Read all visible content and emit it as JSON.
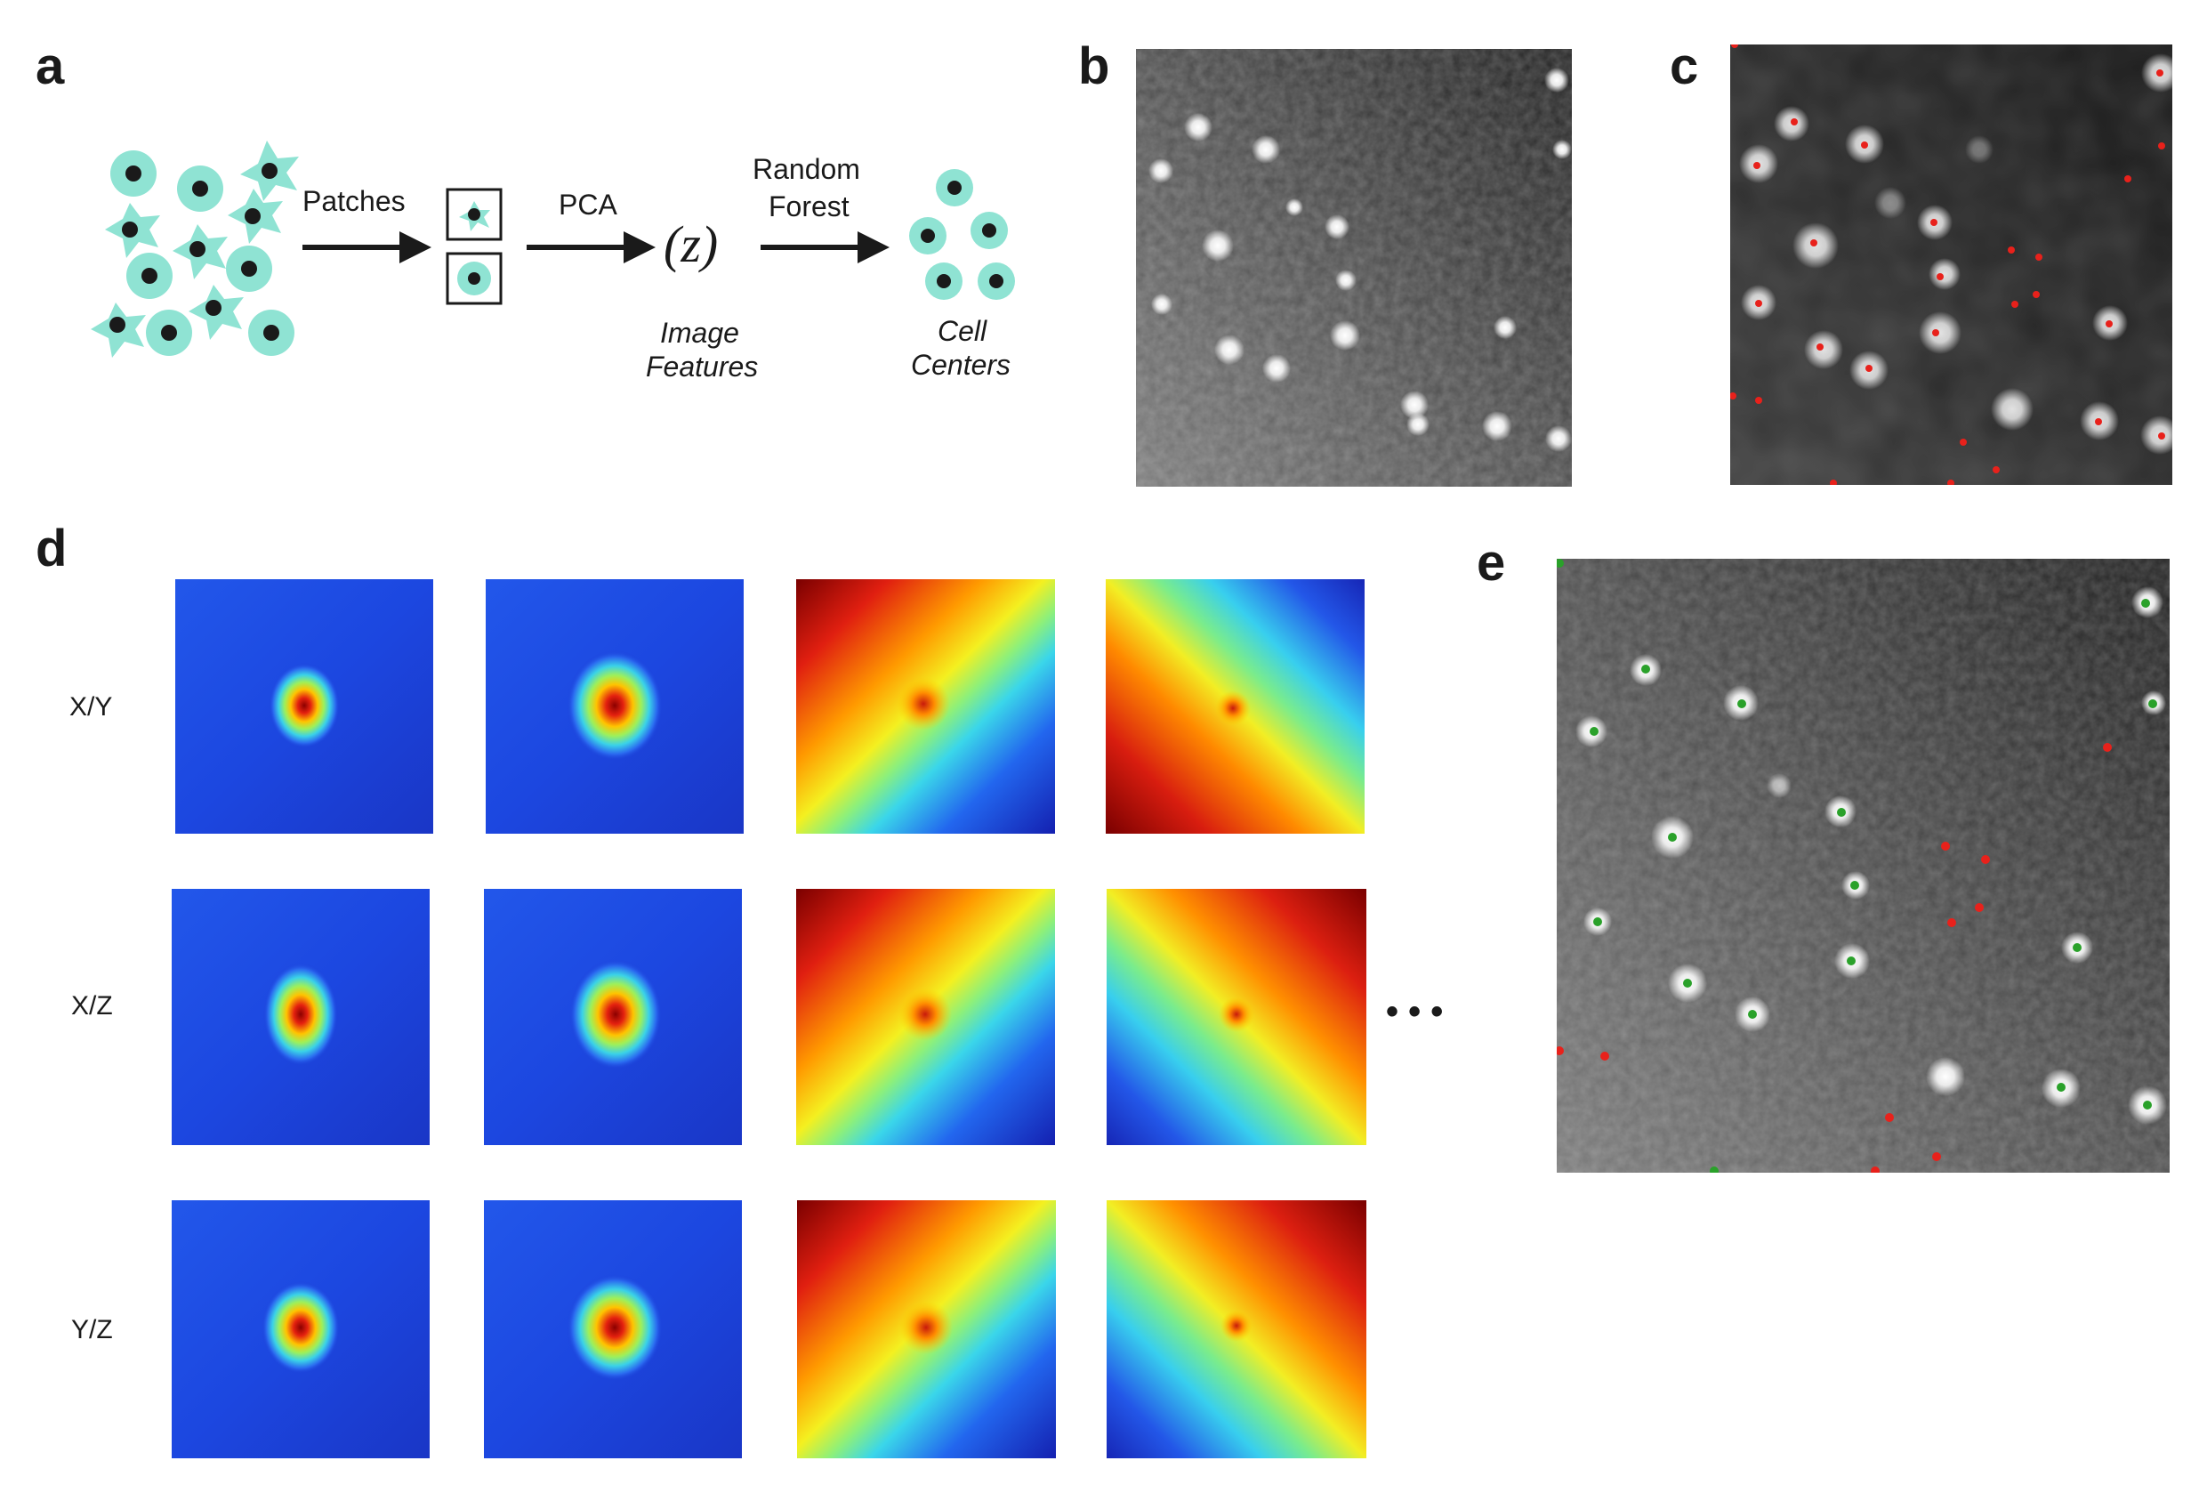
{
  "panels": {
    "a": "a",
    "b": "b",
    "c": "c",
    "d": "d",
    "e": "e"
  },
  "pipeline": {
    "step_patches": "Patches",
    "step_pca": "PCA",
    "step_random_forest_line1": "Random",
    "step_random_forest_line2": "Forest",
    "features_symbol": "(z)",
    "features_label_line1": "Image",
    "features_label_line2": "Features",
    "output_label_line1": "Cell",
    "output_label_line2": "Centers"
  },
  "feature_rows": [
    "X/Y",
    "X/Z",
    "Y/Z"
  ],
  "ellipsis": "• • •",
  "colors": {
    "cell_fill": "#8fe3d3",
    "cell_nucleus": "#1a1a1a",
    "marker_red": "#e8211b",
    "marker_green": "#2aa12a",
    "jet_low": "#1c3fd8",
    "jet_high": "#d21e0f"
  }
}
